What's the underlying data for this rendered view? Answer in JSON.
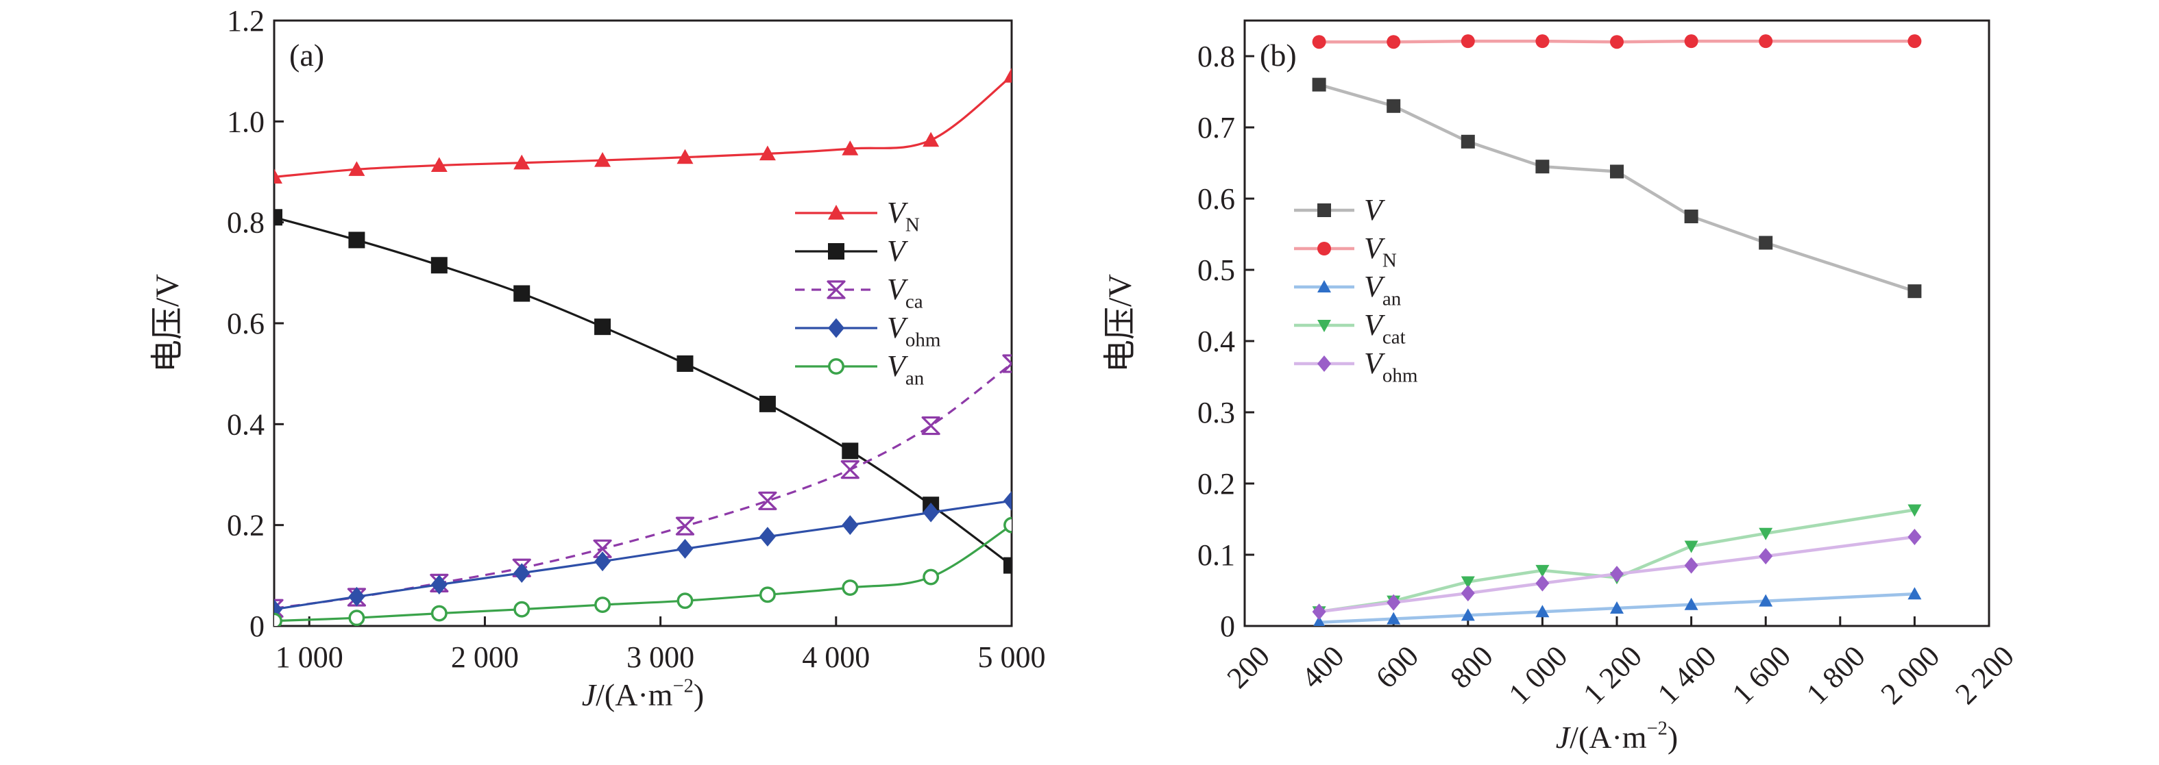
{
  "chart_data": [
    {
      "type": "line",
      "panel_label": "(a)",
      "xlabel": {
        "italic": "J",
        "rest": "/(A·m",
        "sup": "−2",
        "close": ")"
      },
      "ylabel": "电压/V",
      "xlim": [
        800,
        5000
      ],
      "ylim": [
        0,
        1.2
      ],
      "xticks": [
        1000,
        2000,
        3000,
        4000,
        5000
      ],
      "xtick_labels": [
        "1 000",
        "2 000",
        "3 000",
        "4 000",
        "5 000"
      ],
      "yticks": [
        0,
        0.2,
        0.4,
        0.6,
        0.8,
        1.0,
        1.2
      ],
      "ytick_labels": [
        "0",
        "0.2",
        "0.4",
        "0.6",
        "0.8",
        "1.0",
        "1.2"
      ],
      "legend_position": "center-right",
      "series": [
        {
          "name": "V",
          "sub": "N",
          "color": "#e8303a",
          "marker": "triangle",
          "dash": false,
          "x": [
            800,
            1270,
            1740,
            2210,
            2670,
            3140,
            3610,
            4080,
            4540,
            5000
          ],
          "y": [
            0.89,
            0.905,
            0.913,
            0.918,
            0.923,
            0.929,
            0.936,
            0.946,
            0.963,
            1.09
          ]
        },
        {
          "name": "V",
          "sub": "",
          "color": "#1a1a1a",
          "marker": "square",
          "dash": false,
          "x": [
            800,
            1270,
            1740,
            2210,
            2670,
            3140,
            3610,
            4080,
            4540,
            5000
          ],
          "y": [
            0.81,
            0.765,
            0.715,
            0.659,
            0.593,
            0.52,
            0.44,
            0.347,
            0.24,
            0.12
          ]
        },
        {
          "name": "V",
          "sub": "ca",
          "color": "#8e3aa8",
          "marker": "hourglass",
          "dash": true,
          "x": [
            800,
            1270,
            1740,
            2210,
            2670,
            3140,
            3610,
            4080,
            4540,
            5000
          ],
          "y": [
            0.035,
            0.057,
            0.085,
            0.115,
            0.153,
            0.198,
            0.248,
            0.31,
            0.397,
            0.52
          ]
        },
        {
          "name": "V",
          "sub": "ohm",
          "color": "#2e4fa8",
          "marker": "diamond",
          "dash": false,
          "x": [
            800,
            1270,
            1740,
            2210,
            2670,
            3140,
            3610,
            4080,
            4540,
            5000
          ],
          "y": [
            0.033,
            0.058,
            0.082,
            0.105,
            0.128,
            0.153,
            0.177,
            0.2,
            0.225,
            0.248
          ]
        },
        {
          "name": "V",
          "sub": "an",
          "color": "#3aa34a",
          "marker": "circle-open",
          "dash": false,
          "x": [
            800,
            1270,
            1740,
            2210,
            2670,
            3140,
            3610,
            4080,
            4540,
            5000
          ],
          "y": [
            0.01,
            0.016,
            0.025,
            0.033,
            0.042,
            0.05,
            0.062,
            0.076,
            0.097,
            0.2
          ]
        }
      ]
    },
    {
      "type": "line",
      "panel_label": "(b)",
      "xlabel": {
        "italic": "J",
        "rest": "/(A·m",
        "sup": "−2",
        "close": ")"
      },
      "ylabel": "电压/V",
      "xlim": [
        200,
        2200
      ],
      "ylim": [
        0,
        0.85
      ],
      "xticks": [
        200,
        400,
        600,
        800,
        1000,
        1200,
        1400,
        1600,
        1800,
        2000,
        2200
      ],
      "xtick_labels": [
        "200",
        "400",
        "600",
        "800",
        "1 000",
        "1 200",
        "1 400",
        "1 600",
        "1 800",
        "2 000",
        "2 200"
      ],
      "yticks": [
        0,
        0.1,
        0.2,
        0.3,
        0.4,
        0.5,
        0.6,
        0.7,
        0.8
      ],
      "ytick_labels": [
        "0",
        "0.1",
        "0.2",
        "0.3",
        "0.4",
        "0.5",
        "0.6",
        "0.7",
        "0.8"
      ],
      "legend_position": "center-left",
      "series": [
        {
          "name": "V",
          "sub": "",
          "color": "#3a3a3a",
          "line_color": "#b8b8b8",
          "marker": "square",
          "x": [
            400,
            600,
            800,
            1000,
            1200,
            1400,
            1600,
            2000
          ],
          "y": [
            0.76,
            0.73,
            0.68,
            0.645,
            0.638,
            0.575,
            0.538,
            0.47
          ]
        },
        {
          "name": "V",
          "sub": "N",
          "color": "#e8303a",
          "line_color": "#f2a0a6",
          "marker": "circle",
          "x": [
            400,
            600,
            800,
            1000,
            1200,
            1400,
            1600,
            2000
          ],
          "y": [
            0.82,
            0.82,
            0.821,
            0.821,
            0.82,
            0.821,
            0.821,
            0.821
          ]
        },
        {
          "name": "V",
          "sub": "an",
          "color": "#2e6fc8",
          "line_color": "#9cc2ea",
          "marker": "triangle",
          "x": [
            400,
            600,
            800,
            1000,
            1200,
            1400,
            1600,
            2000
          ],
          "y": [
            0.005,
            0.01,
            0.015,
            0.02,
            0.025,
            0.03,
            0.035,
            0.045
          ]
        },
        {
          "name": "V",
          "sub": "cat",
          "color": "#3cb45a",
          "line_color": "#a6dcb2",
          "marker": "triangle-down",
          "x": [
            400,
            600,
            800,
            1000,
            1200,
            1400,
            1600,
            2000
          ],
          "y": [
            0.02,
            0.035,
            0.062,
            0.078,
            0.068,
            0.112,
            0.13,
            0.163
          ]
        },
        {
          "name": "V",
          "sub": "ohm",
          "color": "#9a5ec8",
          "line_color": "#d6b6e8",
          "marker": "diamond",
          "x": [
            400,
            600,
            800,
            1000,
            1200,
            1400,
            1600,
            2000
          ],
          "y": [
            0.02,
            0.033,
            0.046,
            0.06,
            0.073,
            0.085,
            0.098,
            0.125
          ]
        }
      ]
    }
  ]
}
